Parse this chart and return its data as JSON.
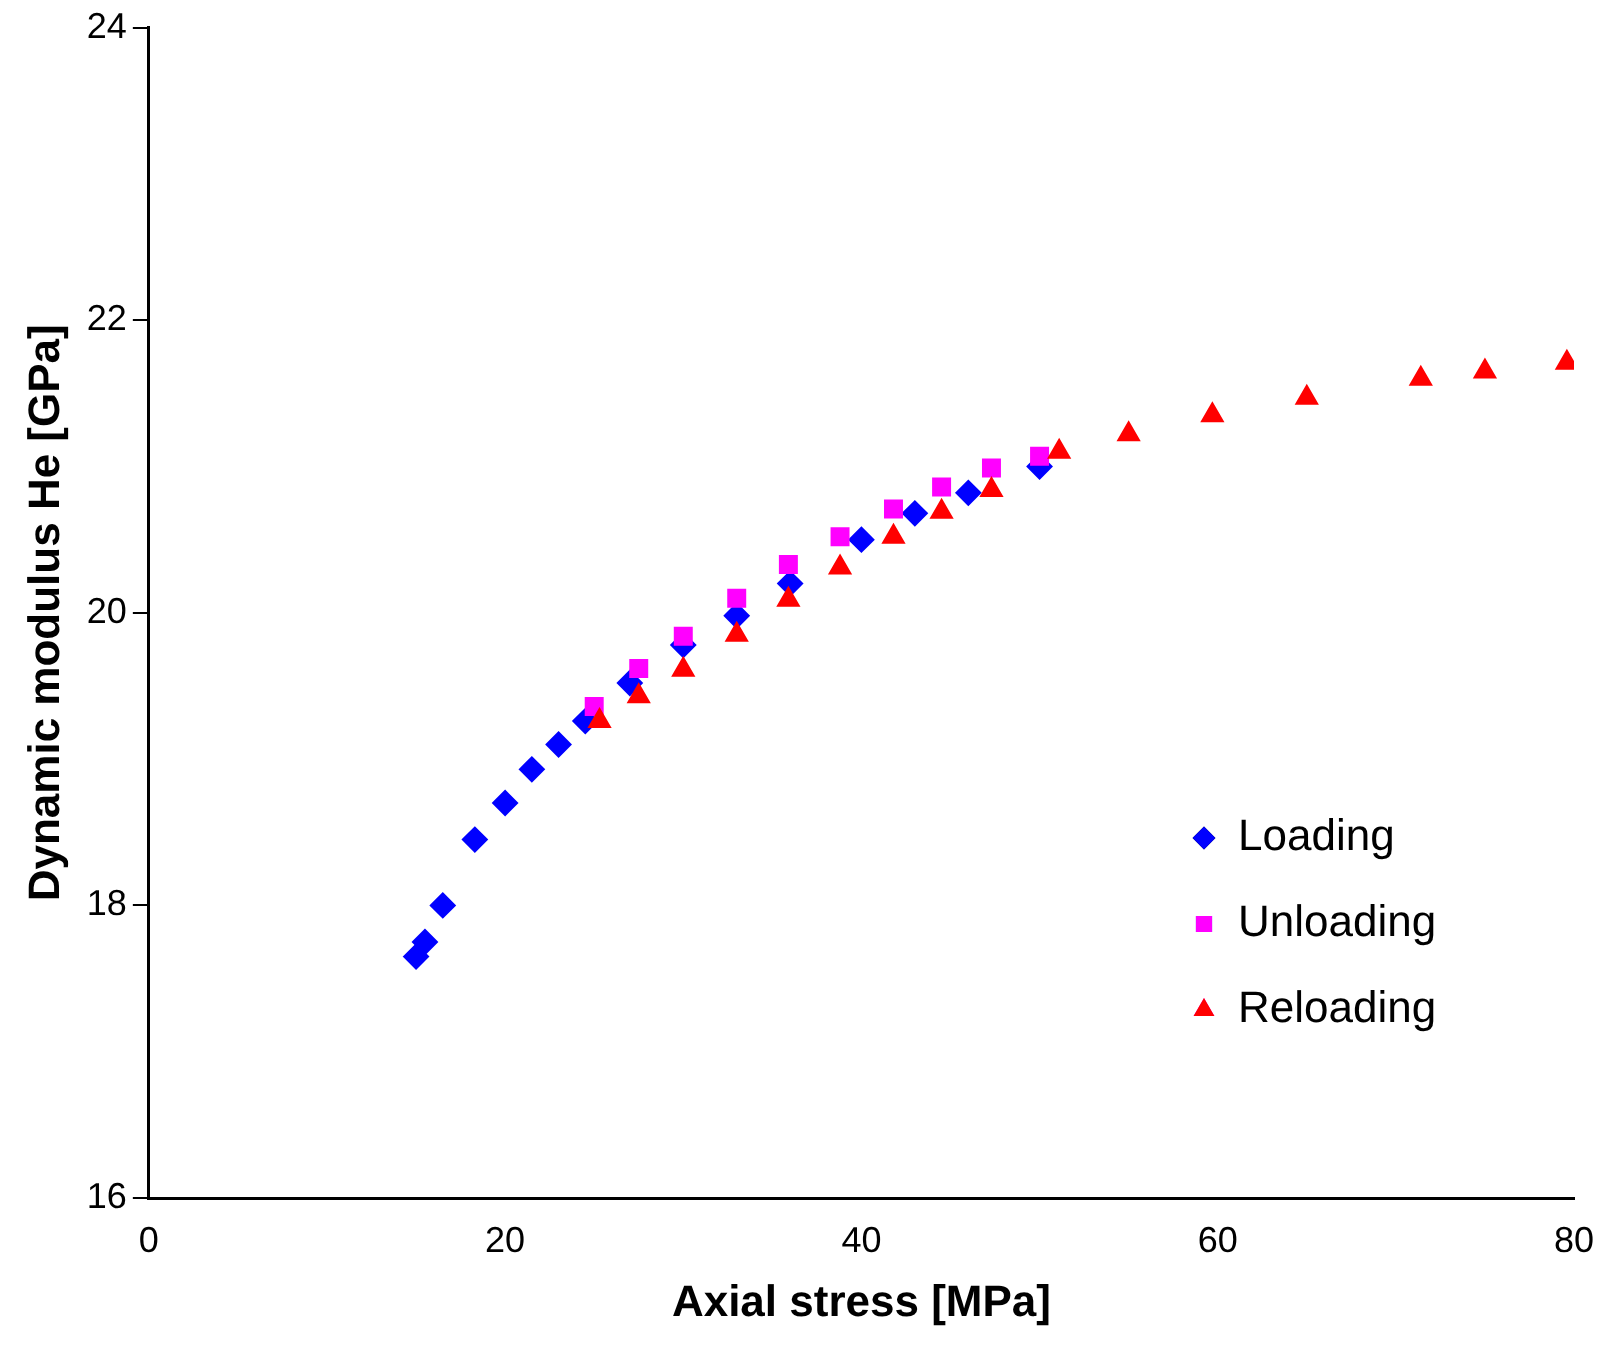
{
  "chart_data": {
    "type": "scatter",
    "xlabel": "Axial stress [MPa]",
    "ylabel": "Dynamic modulus He [GPa]",
    "xlim": [
      0,
      80
    ],
    "xticks": [
      0,
      20,
      40,
      60,
      80
    ],
    "ylim": [
      16,
      24
    ],
    "yticks": [
      16,
      18,
      20,
      22,
      24
    ],
    "grid": false,
    "legend": "bottom right",
    "series": [
      {
        "name": "Loading",
        "color": "#0000ff",
        "marker": "diamond",
        "x": [
          15.0,
          15.5,
          16.5,
          18.3,
          20.0,
          21.5,
          23.0,
          24.5,
          27.0,
          30.0,
          33.0,
          36.0,
          40.0,
          43.0,
          46.0,
          50.0
        ],
        "values": [
          17.65,
          17.75,
          18.0,
          18.45,
          18.7,
          18.93,
          19.1,
          19.26,
          19.52,
          19.78,
          19.98,
          20.2,
          20.5,
          20.68,
          20.82,
          21.0
        ]
      },
      {
        "name": "Unloading",
        "color": "#ff00ff",
        "marker": "square",
        "x": [
          25.0,
          27.5,
          30.0,
          33.0,
          35.9,
          38.8,
          41.8,
          44.5,
          47.3,
          50.0
        ],
        "values": [
          19.36,
          19.62,
          19.84,
          20.1,
          20.33,
          20.52,
          20.71,
          20.86,
          20.99,
          21.07
        ]
      },
      {
        "name": "Reloading",
        "color": "#ff0000",
        "marker": "triangle",
        "x": [
          25.3,
          27.5,
          30.0,
          33.0,
          35.9,
          38.8,
          41.8,
          44.5,
          47.3,
          51.1,
          55.0,
          59.7,
          65.0,
          71.4,
          75.0,
          79.6
        ],
        "values": [
          19.26,
          19.43,
          19.61,
          19.85,
          20.09,
          20.31,
          20.52,
          20.69,
          20.84,
          21.1,
          21.22,
          21.35,
          21.47,
          21.6,
          21.65,
          21.71
        ]
      }
    ]
  }
}
